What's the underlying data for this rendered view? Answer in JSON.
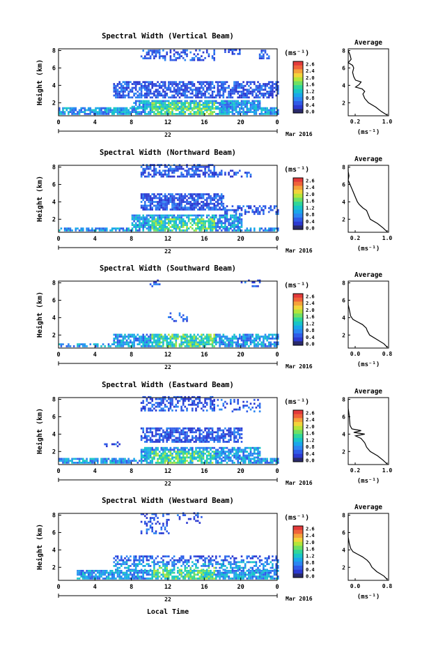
{
  "colormap": [
    "#2a2a6a",
    "#2c3ad1",
    "#2f5ce8",
    "#2c86f2",
    "#1aa7ea",
    "#18c5c8",
    "#2fd79a",
    "#6ee064",
    "#b4e53a",
    "#f2d43a",
    "#f5a23a",
    "#f0633a",
    "#e23a3a"
  ],
  "colorbar": {
    "unit_label": "(ms⁻¹)",
    "ticks": [
      "2.6",
      "2.4",
      "2.0",
      "1.6",
      "1.2",
      "0.8",
      "0.4",
      "0.0"
    ]
  },
  "date_label": "Mar 2016",
  "x_tick_labels": [
    "0",
    "4",
    "8",
    "12",
    "16",
    "20",
    "0"
  ],
  "x_day_label": "22",
  "y_label": "Height (km)",
  "y_tick_labels": [
    "2",
    "4",
    "6",
    "8"
  ],
  "avg_title": "Average",
  "avg_unit_label": "(ms⁻¹)",
  "avg_y_ticks": [
    "2",
    "4",
    "6",
    "8"
  ],
  "footer_label": "Local Time",
  "chart_data": [
    {
      "type": "heatmap",
      "title": "Spectral Width (Vertical Beam)",
      "x_range": [
        0,
        24
      ],
      "y_range": [
        0.5,
        8.2
      ],
      "avg": {
        "type": "line",
        "x_ticks": [
          "0.2",
          "1.0"
        ],
        "xlim": [
          0,
          1.1
        ],
        "ylim": [
          0.5,
          8.2
        ],
        "points": [
          [
            1.05,
            0.6
          ],
          [
            0.9,
            1.0
          ],
          [
            0.75,
            1.5
          ],
          [
            0.55,
            2.0
          ],
          [
            0.45,
            2.5
          ],
          [
            0.4,
            3.0
          ],
          [
            0.45,
            3.3
          ],
          [
            0.38,
            3.6
          ],
          [
            0.2,
            3.8
          ],
          [
            0.3,
            4.1
          ],
          [
            0.35,
            4.4
          ],
          [
            0.2,
            4.6
          ],
          [
            0.15,
            5.0
          ],
          [
            0.12,
            5.5
          ],
          [
            0.15,
            6.0
          ],
          [
            0.12,
            6.3
          ],
          [
            0.0,
            6.6
          ],
          [
            0.08,
            7.0
          ],
          [
            0.05,
            7.5
          ],
          [
            0.0,
            8.0
          ]
        ]
      }
    },
    {
      "type": "heatmap",
      "title": "Spectral Width (Northward Beam)",
      "x_range": [
        0,
        24
      ],
      "y_range": [
        0.5,
        8.2
      ],
      "avg": {
        "type": "line",
        "x_ticks": [
          "0.2",
          "1.0"
        ],
        "xlim": [
          0,
          1.1
        ],
        "ylim": [
          0.5,
          8.2
        ],
        "points": [
          [
            1.05,
            0.6
          ],
          [
            0.95,
            1.0
          ],
          [
            0.8,
            1.5
          ],
          [
            0.6,
            2.0
          ],
          [
            0.55,
            2.5
          ],
          [
            0.5,
            3.0
          ],
          [
            0.4,
            3.3
          ],
          [
            0.3,
            3.7
          ],
          [
            0.25,
            4.0
          ],
          [
            0.2,
            4.5
          ],
          [
            0.15,
            5.0
          ],
          [
            0.1,
            5.5
          ],
          [
            0.05,
            6.0
          ],
          [
            0.0,
            6.5
          ],
          [
            0.02,
            7.0
          ],
          [
            0.0,
            7.5
          ],
          [
            0.0,
            8.0
          ]
        ]
      }
    },
    {
      "type": "heatmap",
      "title": "Spectral Width (Southward Beam)",
      "x_range": [
        0,
        24
      ],
      "y_range": [
        0.5,
        8.2
      ],
      "avg": {
        "type": "line",
        "x_ticks": [
          "0.0",
          "0.8"
        ],
        "xlim": [
          0,
          0.85
        ],
        "ylim": [
          0.5,
          8.2
        ],
        "points": [
          [
            0.82,
            0.6
          ],
          [
            0.75,
            1.0
          ],
          [
            0.6,
            1.5
          ],
          [
            0.45,
            2.0
          ],
          [
            0.4,
            2.5
          ],
          [
            0.38,
            2.8
          ],
          [
            0.3,
            3.2
          ],
          [
            0.2,
            3.5
          ],
          [
            0.1,
            3.8
          ],
          [
            0.05,
            4.2
          ],
          [
            0.02,
            5.0
          ],
          [
            0.0,
            5.5
          ],
          [
            0.0,
            6.5
          ],
          [
            0.0,
            8.0
          ]
        ]
      }
    },
    {
      "type": "heatmap",
      "title": "Spectral Width (Eastward Beam)",
      "x_range": [
        0,
        24
      ],
      "y_range": [
        0.5,
        8.2
      ],
      "avg": {
        "type": "line",
        "x_ticks": [
          "0.2",
          "1.0"
        ],
        "xlim": [
          0,
          1.1
        ],
        "ylim": [
          0.5,
          8.2
        ],
        "points": [
          [
            1.05,
            0.6
          ],
          [
            0.95,
            1.0
          ],
          [
            0.8,
            1.5
          ],
          [
            0.6,
            2.0
          ],
          [
            0.5,
            2.5
          ],
          [
            0.45,
            3.0
          ],
          [
            0.35,
            3.5
          ],
          [
            0.2,
            3.8
          ],
          [
            0.45,
            4.0
          ],
          [
            0.15,
            4.2
          ],
          [
            0.35,
            4.4
          ],
          [
            0.1,
            4.6
          ],
          [
            0.05,
            5.0
          ],
          [
            0.03,
            6.0
          ],
          [
            0.0,
            7.0
          ],
          [
            0.0,
            8.0
          ]
        ]
      }
    },
    {
      "type": "heatmap",
      "title": "Spectral Width (Westward Beam)",
      "x_range": [
        0,
        24
      ],
      "y_range": [
        0.5,
        8.2
      ],
      "avg": {
        "type": "line",
        "x_ticks": [
          "0.0",
          "0.8"
        ],
        "xlim": [
          0,
          0.85
        ],
        "ylim": [
          0.5,
          8.2
        ],
        "points": [
          [
            0.82,
            0.6
          ],
          [
            0.75,
            1.0
          ],
          [
            0.6,
            1.5
          ],
          [
            0.5,
            2.0
          ],
          [
            0.45,
            2.5
          ],
          [
            0.4,
            2.8
          ],
          [
            0.3,
            3.2
          ],
          [
            0.2,
            3.5
          ],
          [
            0.1,
            3.8
          ],
          [
            0.05,
            4.2
          ],
          [
            0.02,
            4.8
          ],
          [
            0.0,
            5.5
          ],
          [
            0.0,
            8.0
          ]
        ]
      }
    }
  ]
}
